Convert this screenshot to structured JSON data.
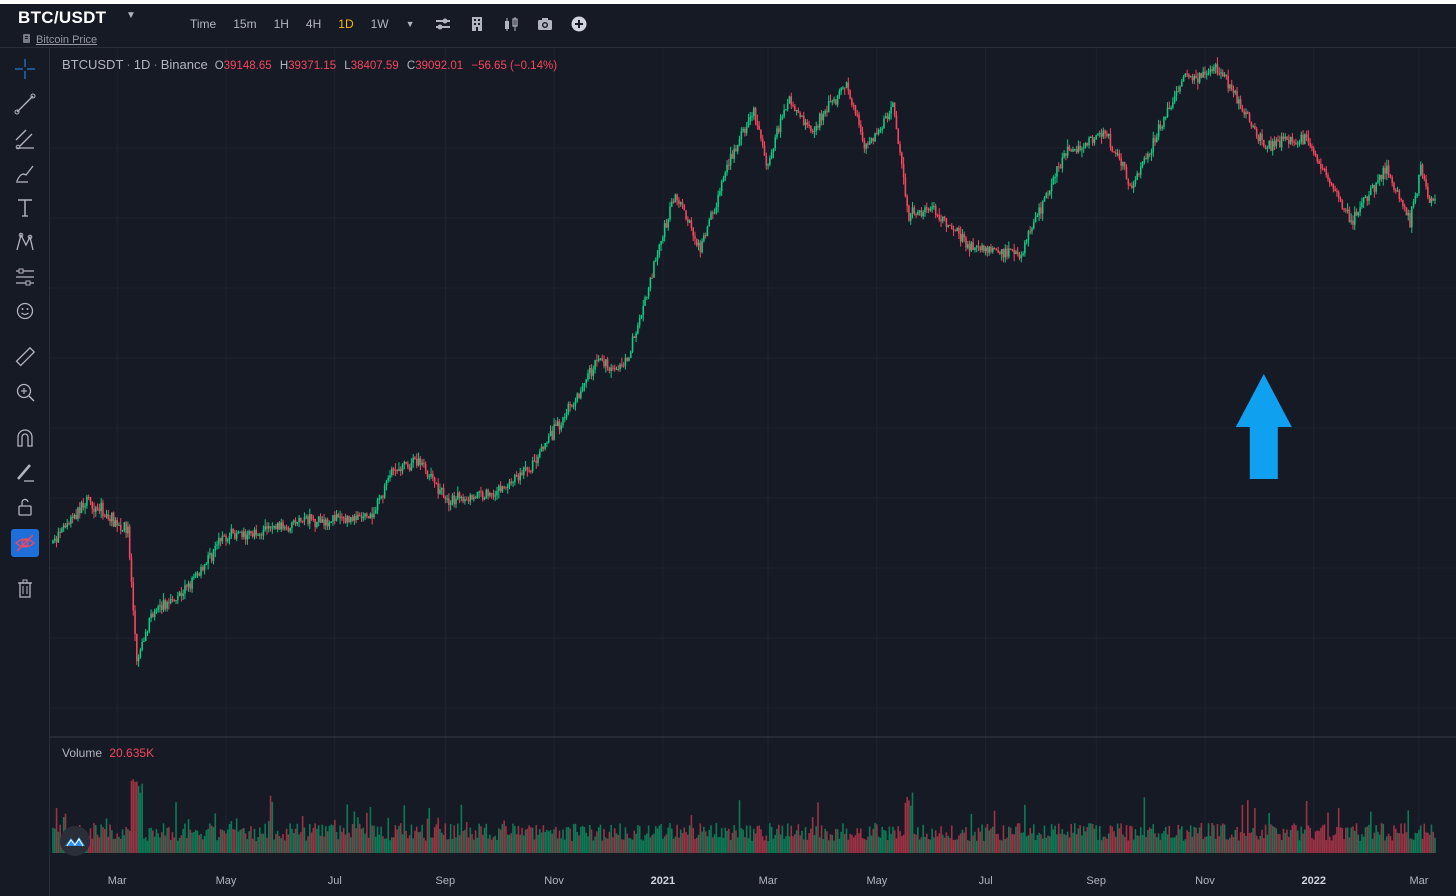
{
  "header": {
    "symbol": "BTC/USDT",
    "subtitle": "Bitcoin Price",
    "timeframes": [
      {
        "label": "Time",
        "active": false
      },
      {
        "label": "15m",
        "active": false
      },
      {
        "label": "1H",
        "active": false
      },
      {
        "label": "4H",
        "active": false
      },
      {
        "label": "1D",
        "active": true
      },
      {
        "label": "1W",
        "active": false
      }
    ]
  },
  "legend": {
    "pair": "BTCUSDT",
    "interval": "1D",
    "exchange": "Binance",
    "open_key": "O",
    "open": "39148.65",
    "high_key": "H",
    "high": "39371.15",
    "low_key": "L",
    "low": "38407.59",
    "close_key": "C",
    "close": "39092.01",
    "change": "−56.65 (−0.14%)"
  },
  "volume": {
    "label": "Volume",
    "value": "20.635K"
  },
  "colors": {
    "up": "#0ecb81",
    "down": "#f6465d",
    "accent": "#f0b90b",
    "arrow": "#10a0f0",
    "background": "#161a25"
  },
  "chart_data": {
    "type": "candlestick",
    "x_ticks": [
      {
        "label": "Mar",
        "date": "2020-03-01",
        "year": false
      },
      {
        "label": "May",
        "date": "2020-05-01",
        "year": false
      },
      {
        "label": "Jul",
        "date": "2020-07-01",
        "year": false
      },
      {
        "label": "Sep",
        "date": "2020-09-01",
        "year": false
      },
      {
        "label": "Nov",
        "date": "2020-11-01",
        "year": false
      },
      {
        "label": "2021",
        "date": "2021-01-01",
        "year": true
      },
      {
        "label": "Mar",
        "date": "2021-03-01",
        "year": false
      },
      {
        "label": "May",
        "date": "2021-05-01",
        "year": false
      },
      {
        "label": "Jul",
        "date": "2021-07-01",
        "year": false
      },
      {
        "label": "Sep",
        "date": "2021-09-01",
        "year": false
      },
      {
        "label": "Nov",
        "date": "2021-11-01",
        "year": false
      },
      {
        "label": "2022",
        "date": "2022-01-01",
        "year": true
      },
      {
        "label": "Mar",
        "date": "2022-03-01",
        "year": false
      }
    ],
    "x_range": [
      "2020-01-25",
      "2022-03-10"
    ],
    "y_scale": "log",
    "price_path": [
      [
        "2020-01-25",
        8500
      ],
      [
        "2020-02-13",
        10300
      ],
      [
        "2020-03-07",
        9000
      ],
      [
        "2020-03-12",
        5000
      ],
      [
        "2020-03-20",
        6200
      ],
      [
        "2020-04-10",
        7000
      ],
      [
        "2020-04-30",
        8800
      ],
      [
        "2020-05-10",
        8800
      ],
      [
        "2020-06-15",
        9400
      ],
      [
        "2020-07-22",
        9500
      ],
      [
        "2020-08-01",
        11500
      ],
      [
        "2020-08-17",
        12300
      ],
      [
        "2020-09-03",
        10200
      ],
      [
        "2020-10-01",
        10700
      ],
      [
        "2020-10-20",
        12000
      ],
      [
        "2020-11-10",
        15500
      ],
      [
        "2020-11-25",
        19000
      ],
      [
        "2020-12-10",
        18300
      ],
      [
        "2020-12-16",
        21000
      ],
      [
        "2021-01-08",
        40000
      ],
      [
        "2021-01-22",
        31000
      ],
      [
        "2021-02-08",
        46000
      ],
      [
        "2021-02-21",
        57000
      ],
      [
        "2021-02-28",
        45000
      ],
      [
        "2021-03-13",
        61000
      ],
      [
        "2021-03-25",
        52000
      ],
      [
        "2021-04-14",
        64000
      ],
      [
        "2021-04-25",
        48000
      ],
      [
        "2021-05-10",
        58000
      ],
      [
        "2021-05-19",
        36000
      ],
      [
        "2021-06-01",
        37000
      ],
      [
        "2021-06-22",
        31500
      ],
      [
        "2021-07-20",
        30000
      ],
      [
        "2021-08-14",
        47000
      ],
      [
        "2021-09-06",
        52000
      ],
      [
        "2021-09-21",
        41000
      ],
      [
        "2021-10-01",
        48000
      ],
      [
        "2021-10-20",
        66000
      ],
      [
        "2021-11-10",
        68500
      ],
      [
        "2021-12-04",
        49000
      ],
      [
        "2021-12-27",
        50700
      ],
      [
        "2022-01-22",
        35000
      ],
      [
        "2022-02-10",
        44500
      ],
      [
        "2022-02-24",
        35000
      ],
      [
        "2022-03-02",
        44000
      ],
      [
        "2022-03-07",
        38500
      ]
    ],
    "annotation": {
      "type": "arrow-up",
      "date": "2021-12-04"
    }
  }
}
